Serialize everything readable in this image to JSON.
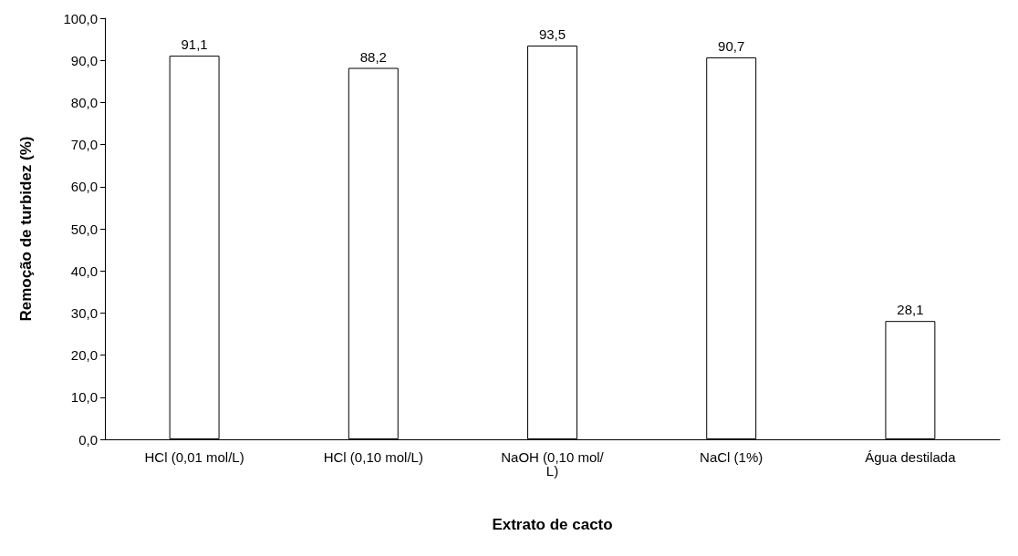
{
  "chart_data": {
    "type": "bar",
    "xlabel": "Extrato de cacto",
    "ylabel": "Remoção de turbidez (%)",
    "categories": [
      "HCl (0,01 mol/L)",
      "HCl (0,10 mol/L)",
      "NaOH (0,10 mol/L)",
      "NaCl (1%)",
      "Água destilada"
    ],
    "values": [
      91.1,
      88.2,
      93.5,
      90.7,
      28.1
    ],
    "value_labels": [
      "91,1",
      "88,2",
      "93,5",
      "90,7",
      "28,1"
    ],
    "color": "#ffffff",
    "ylim": [
      0,
      100
    ],
    "yticks": [
      {
        "value": 0,
        "label": "0,0"
      },
      {
        "value": 10,
        "label": "10,0"
      },
      {
        "value": 20,
        "label": "20,0"
      },
      {
        "value": 30,
        "label": "30,0"
      },
      {
        "value": 40,
        "label": "40,0"
      },
      {
        "value": 50,
        "label": "50,0"
      },
      {
        "value": 60,
        "label": "60,0"
      },
      {
        "value": 70,
        "label": "70,0"
      },
      {
        "value": 80,
        "label": "80,0"
      },
      {
        "value": 90,
        "label": "90,0"
      },
      {
        "value": 100,
        "label": "100,0"
      }
    ],
    "grid": false
  }
}
